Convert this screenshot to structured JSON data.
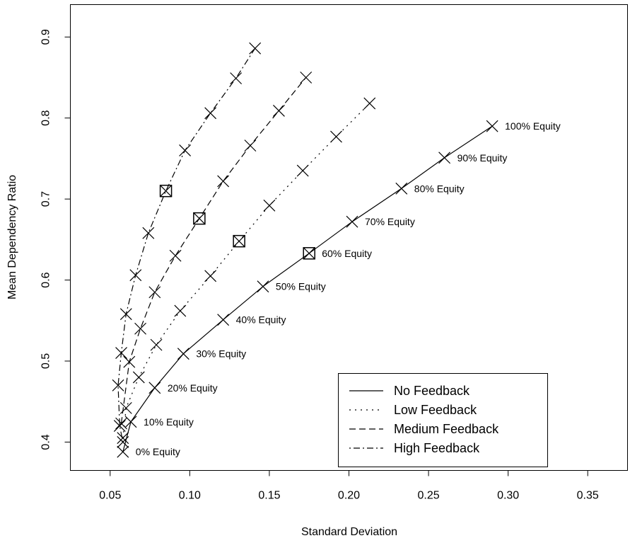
{
  "chart_data": {
    "type": "line",
    "title": "",
    "xlabel": "Standard Deviation",
    "ylabel": "Mean Dependency Ratio",
    "xlim": [
      0.025,
      0.375
    ],
    "ylim": [
      0.365,
      0.94
    ],
    "x_ticks": [
      0.05,
      0.1,
      0.15,
      0.2,
      0.25,
      0.3,
      0.35
    ],
    "x_tick_labels": [
      "0.05",
      "0.10",
      "0.15",
      "0.20",
      "0.25",
      "0.30",
      "0.35"
    ],
    "y_ticks": [
      0.4,
      0.5,
      0.6,
      0.7,
      0.8,
      0.9
    ],
    "y_tick_labels": [
      "0.4",
      "0.5",
      "0.6",
      "0.7",
      "0.8",
      "0.9"
    ],
    "grid": false,
    "legend_position": "bottom-right",
    "marker": "x",
    "highlight_marker": "boxed-x",
    "series": [
      {
        "name": "No Feedback",
        "line_style": "solid",
        "x": [
          0.058,
          0.063,
          0.078,
          0.096,
          0.121,
          0.146,
          0.175,
          0.202,
          0.233,
          0.26,
          0.29
        ],
        "y": [
          0.388,
          0.425,
          0.467,
          0.509,
          0.551,
          0.592,
          0.633,
          0.672,
          0.713,
          0.751,
          0.79
        ],
        "highlight_index": 6
      },
      {
        "name": "Low Feedback",
        "line_style": "dotted",
        "x": [
          0.058,
          0.06,
          0.068,
          0.079,
          0.094,
          0.113,
          0.131,
          0.15,
          0.171,
          0.192,
          0.213
        ],
        "y": [
          0.405,
          0.442,
          0.48,
          0.52,
          0.562,
          0.605,
          0.648,
          0.692,
          0.735,
          0.777,
          0.818
        ],
        "highlight_index": 6
      },
      {
        "name": "Medium Feedback",
        "line_style": "dashed",
        "x": [
          0.057,
          0.062,
          0.069,
          0.078,
          0.091,
          0.106,
          0.121,
          0.138,
          0.156,
          0.173
        ],
        "y": [
          0.423,
          0.499,
          0.54,
          0.585,
          0.63,
          0.676,
          0.722,
          0.766,
          0.809,
          0.85
        ],
        "highlight_index": 5
      },
      {
        "name": "High Feedback",
        "line_style": "dotdash",
        "x": [
          0.058,
          0.056,
          0.055,
          0.057,
          0.06,
          0.066,
          0.074,
          0.085,
          0.097,
          0.113,
          0.129,
          0.141
        ],
        "y": [
          0.4,
          0.42,
          0.47,
          0.51,
          0.558,
          0.606,
          0.658,
          0.71,
          0.76,
          0.806,
          0.849,
          0.886
        ],
        "highlight_index": 7
      }
    ],
    "annotations": [
      {
        "text": "0% Equity",
        "x": 0.058,
        "y": 0.388
      },
      {
        "text": "10% Equity",
        "x": 0.063,
        "y": 0.425
      },
      {
        "text": "20% Equity",
        "x": 0.078,
        "y": 0.467
      },
      {
        "text": "30% Equity",
        "x": 0.096,
        "y": 0.509
      },
      {
        "text": "40% Equity",
        "x": 0.121,
        "y": 0.551
      },
      {
        "text": "50% Equity",
        "x": 0.146,
        "y": 0.592
      },
      {
        "text": "60% Equity",
        "x": 0.175,
        "y": 0.633
      },
      {
        "text": "70% Equity",
        "x": 0.202,
        "y": 0.672
      },
      {
        "text": "80% Equity",
        "x": 0.233,
        "y": 0.713
      },
      {
        "text": "90% Equity",
        "x": 0.26,
        "y": 0.751
      },
      {
        "text": "100% Equity",
        "x": 0.29,
        "y": 0.79
      }
    ]
  }
}
